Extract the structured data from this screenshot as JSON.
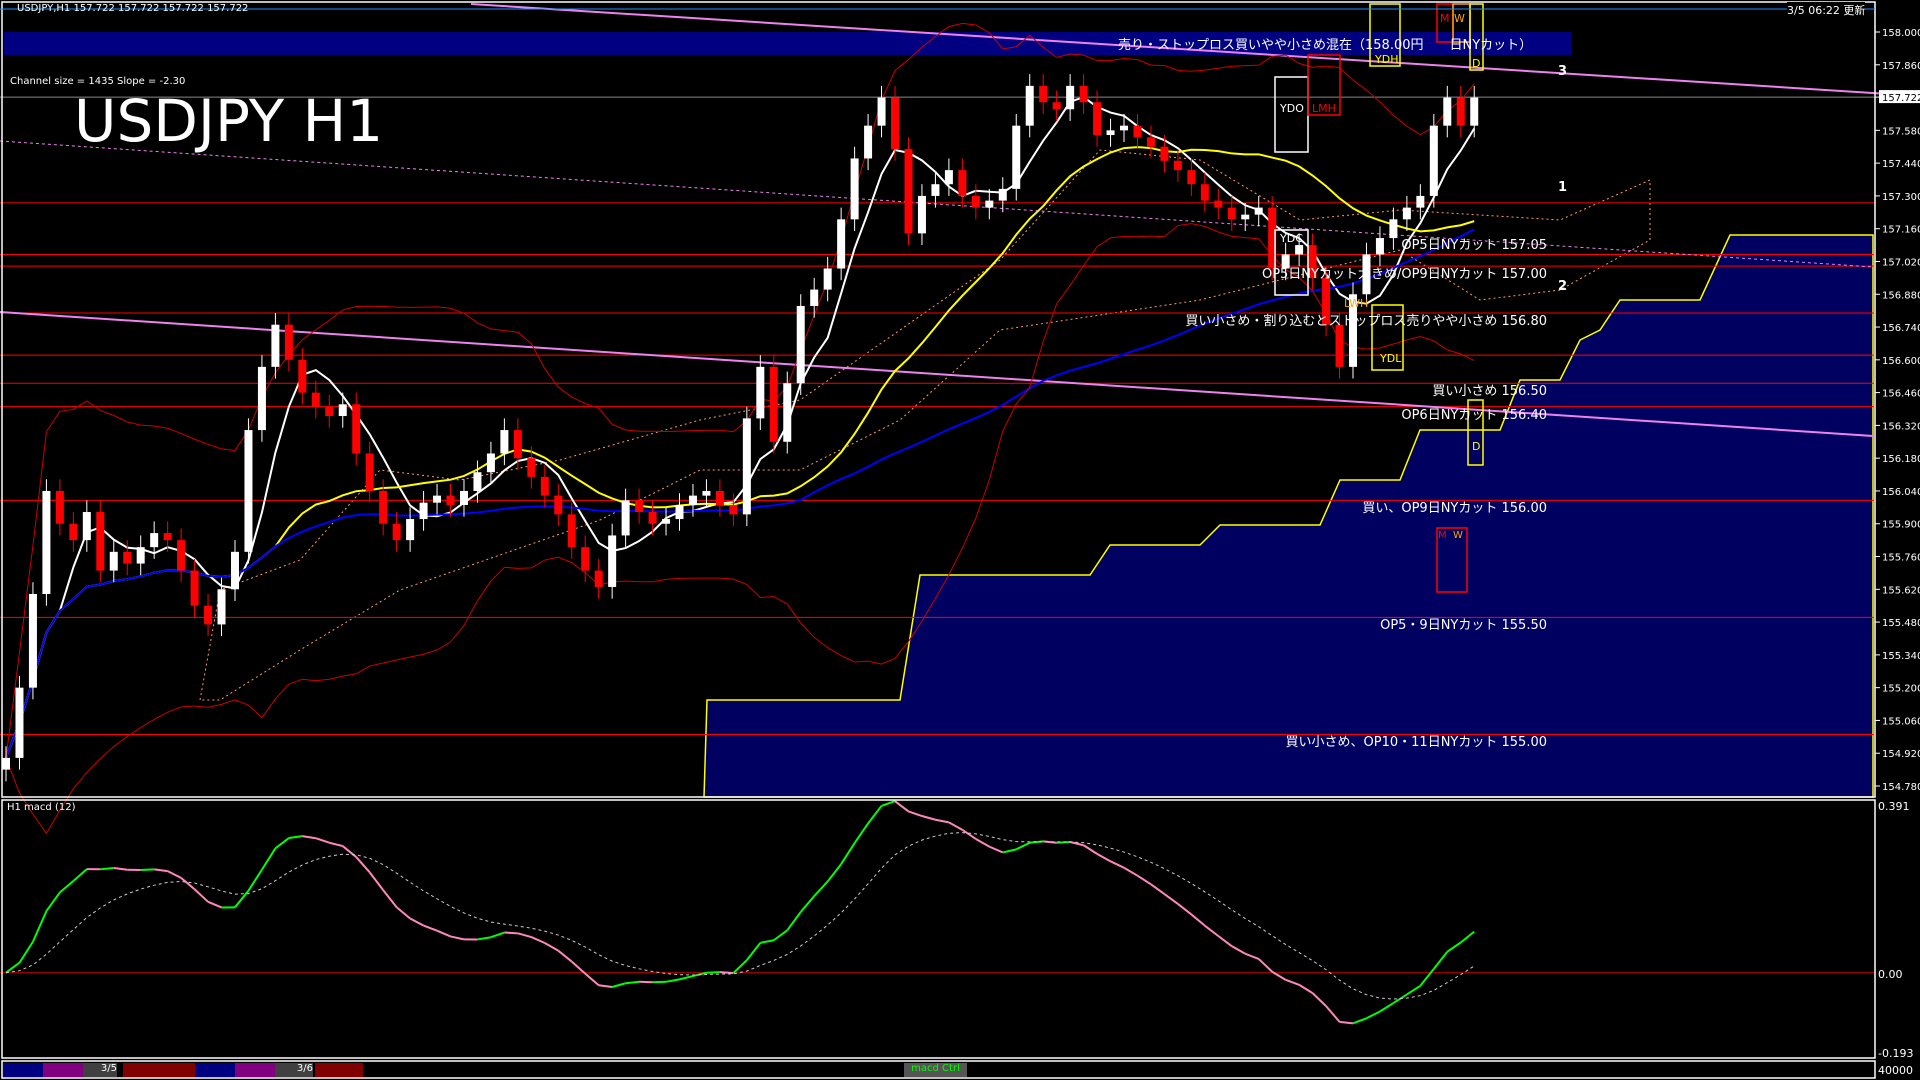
{
  "header": {
    "symbol_info": "USDJPY,H1  157.722 157.722 157.722 157.722",
    "updated": "3/5 06:22 更新",
    "channel_info": "Channel size = 1435 Slope = -2.30",
    "big_title": "USDJPY H1"
  },
  "banner": {
    "text": "売り・ストップロス買いやや小さめ混在（158.00円　　日NYカット）",
    "color": "#000080"
  },
  "annotations": [
    {
      "price": 157.05,
      "text": "OP5日NYカット 157.05"
    },
    {
      "price": 157.0,
      "text": "OP5日NYカット大きめ/OP9日NYカット 157.00"
    },
    {
      "price": 156.8,
      "text": "買い小さめ・割り込むとストップロス売りやや小さめ 156.80"
    },
    {
      "price": 156.5,
      "text": "買い小さめ 156.50"
    },
    {
      "price": 156.4,
      "text": "OP6日NYカット 156.40"
    },
    {
      "price": 156.0,
      "text": "買い、OP9日NYカット 156.00"
    },
    {
      "price": 155.5,
      "text": "OP5・9日NYカット 155.50"
    },
    {
      "price": 155.0,
      "text": "買い小さめ、OP10・11日NYカット 155.00"
    }
  ],
  "level_boxes": {
    "ydo": "YDO",
    "ydc": "YDC",
    "ydh": "YDH",
    "ydl": "YDL",
    "lmh": "LMH",
    "lwh": "LWH",
    "m": "M",
    "w": "W",
    "d": "D",
    "d2": "D",
    "m2": "M",
    "w2": "W"
  },
  "trend_labels": [
    "3",
    "1",
    "2"
  ],
  "price_axis": {
    "ticks": [
      "158.000",
      "157.860",
      "157.722",
      "157.580",
      "157.440",
      "157.300",
      "157.160",
      "157.020",
      "156.880",
      "156.740",
      "156.600",
      "156.460",
      "156.320",
      "156.180",
      "156.040",
      "155.900",
      "155.760",
      "155.620",
      "155.480",
      "155.340",
      "155.200",
      "155.060",
      "154.920",
      "154.780"
    ],
    "current": "157.722"
  },
  "macd_panel": {
    "label": "H1  macd (12)",
    "max": "0.391",
    "zero": "0.00",
    "min": "-0.193",
    "volume_label": "40000"
  },
  "bottom_bar": {
    "dates": [
      "3/5",
      "3/6"
    ],
    "button": "macd Ctrl"
  },
  "colors": {
    "bull": "#ffffff",
    "bear": "#ff0000",
    "level": "#ff0000",
    "channel": "#ee82ee",
    "cloud": "#0000cc",
    "ma_fast": "#ffffff",
    "ma_mid": "#ffff00",
    "ma_slow": "#0000ff",
    "macd_up": "#00ff00",
    "macd_down": "#ff88bb"
  },
  "chart_data": {
    "type": "candlestick",
    "symbol": "USDJPY",
    "timeframe": "H1",
    "ylim": [
      154.78,
      158.0
    ],
    "close": [
      154.9,
      155.2,
      155.6,
      156.04,
      155.9,
      155.83,
      155.95,
      155.7,
      155.78,
      155.73,
      155.8,
      155.86,
      155.83,
      155.7,
      155.55,
      155.47,
      155.62,
      155.78,
      156.3,
      156.57,
      156.75,
      156.6,
      156.46,
      156.4,
      156.36,
      156.41,
      156.2,
      156.04,
      155.9,
      155.83,
      155.92,
      155.99,
      156.02,
      155.98,
      156.04,
      156.12,
      156.2,
      156.3,
      156.18,
      156.1,
      156.02,
      155.94,
      155.8,
      155.7,
      155.63,
      155.85,
      156.0,
      155.95,
      155.9,
      155.92,
      155.98,
      156.02,
      156.04,
      155.98,
      155.94,
      156.35,
      156.57,
      156.25,
      156.5,
      156.83,
      156.9,
      156.99,
      157.2,
      157.46,
      157.6,
      157.72,
      157.5,
      157.14,
      157.3,
      157.35,
      157.41,
      157.3,
      157.25,
      157.28,
      157.33,
      157.6,
      157.77,
      157.7,
      157.67,
      157.77,
      157.7,
      157.56,
      157.58,
      157.6,
      157.55,
      157.51,
      157.45,
      157.41,
      157.35,
      157.28,
      157.25,
      157.2,
      157.22,
      157.25,
      156.99,
      157.05,
      157.09,
      156.95,
      156.75,
      156.57,
      156.88,
      157.05,
      157.12,
      157.2,
      157.25,
      157.3,
      157.6,
      157.72,
      157.6,
      157.72
    ],
    "current_price": 157.722
  }
}
